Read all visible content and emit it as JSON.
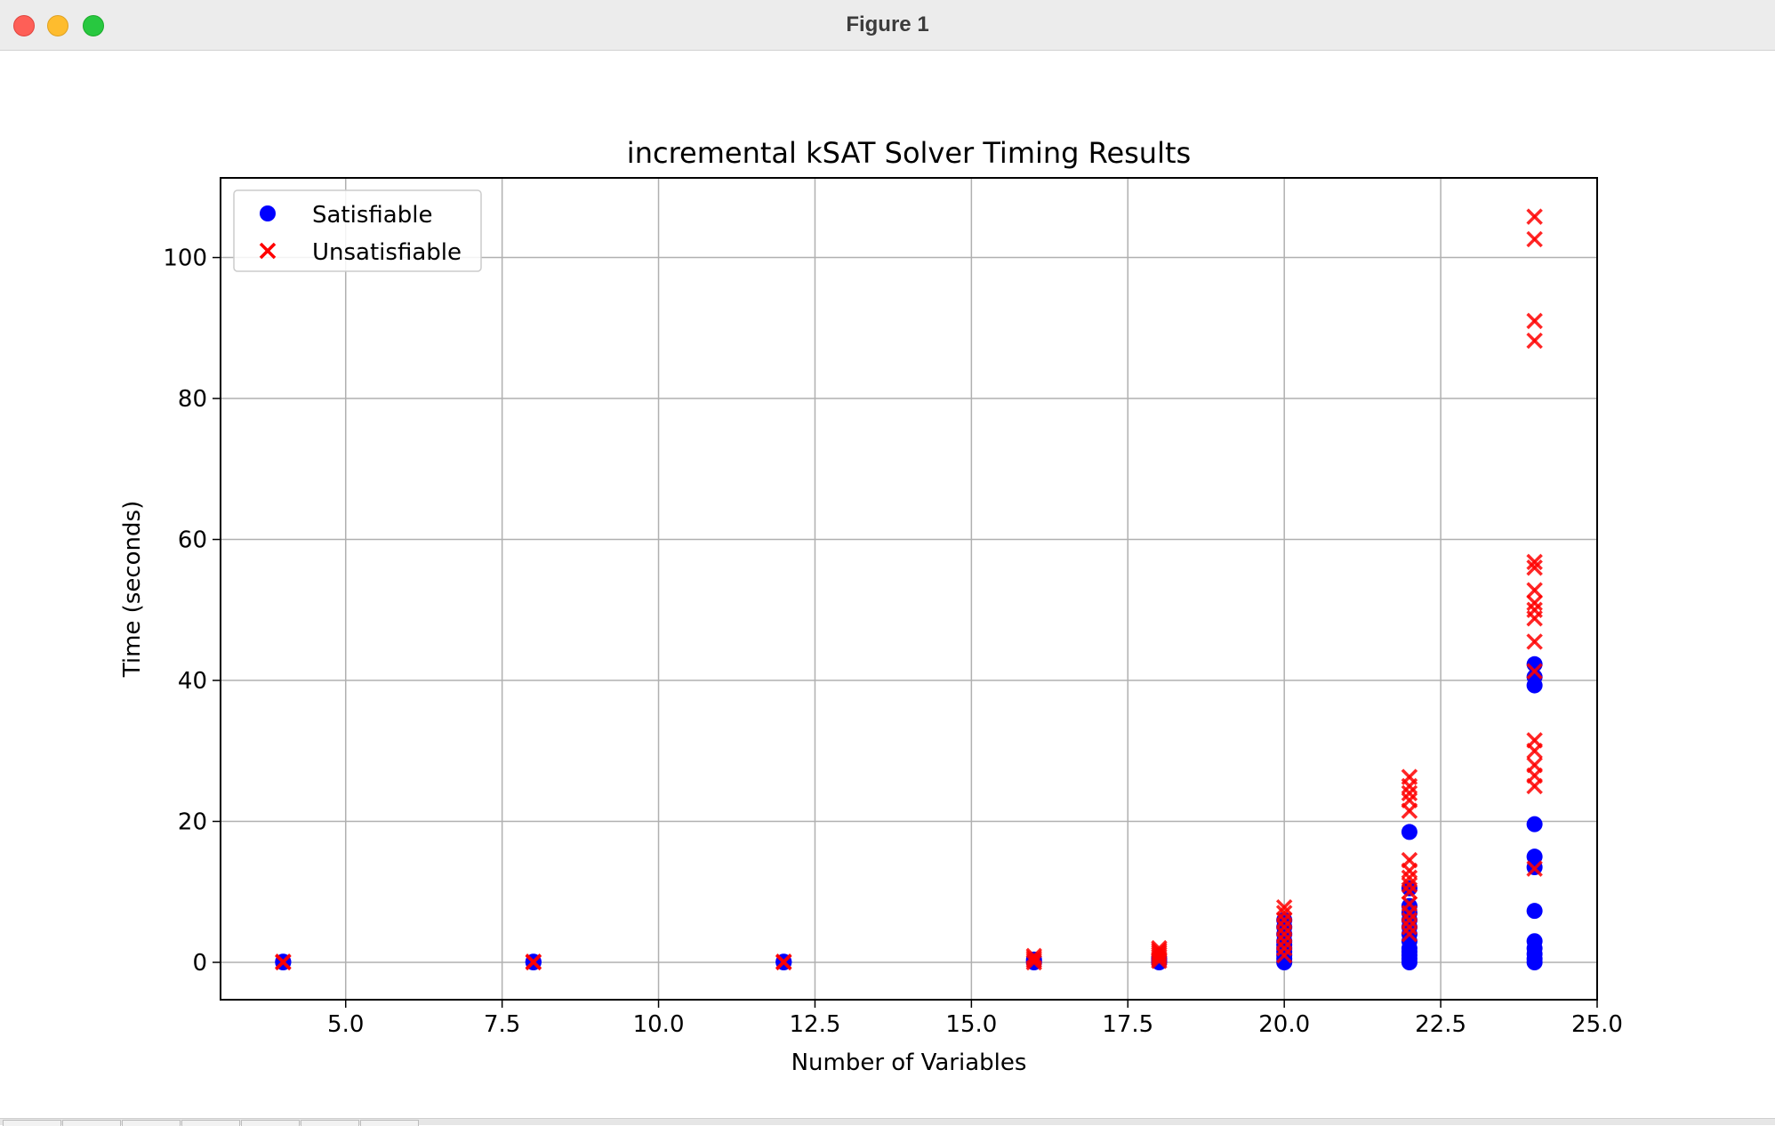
{
  "window": {
    "title": "Figure 1"
  },
  "chart_data": {
    "type": "scatter",
    "title": "incremental kSAT Solver Timing Results",
    "xlabel": "Number of Variables",
    "ylabel": "Time (seconds)",
    "xlim": [
      3.0,
      25.0
    ],
    "ylim": [
      -5.3,
      111.3
    ],
    "xticks": [
      5.0,
      7.5,
      10.0,
      12.5,
      15.0,
      17.5,
      20.0,
      22.5,
      25.0
    ],
    "xtick_labels": [
      "5.0",
      "7.5",
      "10.0",
      "12.5",
      "15.0",
      "17.5",
      "20.0",
      "22.5",
      "25.0"
    ],
    "yticks": [
      0,
      20,
      40,
      60,
      80,
      100
    ],
    "ytick_labels": [
      "0",
      "20",
      "40",
      "60",
      "80",
      "100"
    ],
    "grid": true,
    "legend_position": "top-left",
    "series": [
      {
        "name": "Satisfiable",
        "marker": "circle",
        "color": "#0000ff",
        "points": [
          [
            4,
            0
          ],
          [
            4,
            0.05
          ],
          [
            4,
            0.1
          ],
          [
            8,
            0
          ],
          [
            8,
            0.05
          ],
          [
            8,
            0.1
          ],
          [
            12,
            0
          ],
          [
            12,
            0.05
          ],
          [
            12,
            0.1
          ],
          [
            16,
            0
          ],
          [
            16,
            0.2
          ],
          [
            16,
            0.4
          ],
          [
            18,
            0
          ],
          [
            18,
            0.3
          ],
          [
            18,
            0.6
          ],
          [
            20,
            0
          ],
          [
            20,
            0.5
          ],
          [
            20,
            1
          ],
          [
            20,
            1.5
          ],
          [
            20,
            2
          ],
          [
            20,
            2.5
          ],
          [
            20,
            3
          ],
          [
            20,
            4
          ],
          [
            20,
            5
          ],
          [
            20,
            6
          ],
          [
            22,
            0
          ],
          [
            22,
            0.5
          ],
          [
            22,
            1
          ],
          [
            22,
            1.5
          ],
          [
            22,
            2
          ],
          [
            22,
            3
          ],
          [
            22,
            4
          ],
          [
            22,
            5
          ],
          [
            22,
            6
          ],
          [
            22,
            7
          ],
          [
            22,
            8
          ],
          [
            22,
            10.5
          ],
          [
            22,
            18.5
          ],
          [
            24,
            0
          ],
          [
            24,
            0.5
          ],
          [
            24,
            1.2
          ],
          [
            24,
            2
          ],
          [
            24,
            3
          ],
          [
            24,
            7.3
          ],
          [
            24,
            13.5
          ],
          [
            24,
            15
          ],
          [
            24,
            19.6
          ],
          [
            24,
            39.3
          ],
          [
            24,
            40.5
          ],
          [
            24,
            42.3
          ]
        ]
      },
      {
        "name": "Unsatisfiable",
        "marker": "x",
        "color": "#ff0000",
        "points": [
          [
            4,
            0
          ],
          [
            4,
            0.1
          ],
          [
            8,
            0
          ],
          [
            8,
            0.1
          ],
          [
            12,
            0
          ],
          [
            12,
            0.1
          ],
          [
            16,
            0
          ],
          [
            16,
            0.3
          ],
          [
            16,
            0.6
          ],
          [
            16,
            0.9
          ],
          [
            18,
            0.2
          ],
          [
            18,
            0.5
          ],
          [
            18,
            0.8
          ],
          [
            18,
            1.1
          ],
          [
            18,
            1.4
          ],
          [
            18,
            1.7
          ],
          [
            18,
            2
          ],
          [
            20,
            1
          ],
          [
            20,
            2
          ],
          [
            20,
            3
          ],
          [
            20,
            4
          ],
          [
            20,
            5
          ],
          [
            20,
            6
          ],
          [
            20,
            7
          ],
          [
            20,
            7.8
          ],
          [
            22,
            4
          ],
          [
            22,
            5
          ],
          [
            22,
            6
          ],
          [
            22,
            7
          ],
          [
            22,
            8.3
          ],
          [
            22,
            10
          ],
          [
            22,
            11
          ],
          [
            22,
            12
          ],
          [
            22,
            13
          ],
          [
            22,
            14.5
          ],
          [
            22,
            21.5
          ],
          [
            22,
            23
          ],
          [
            22,
            24
          ],
          [
            22,
            25
          ],
          [
            22,
            26.3
          ],
          [
            24,
            13.3
          ],
          [
            24,
            25
          ],
          [
            24,
            26.5
          ],
          [
            24,
            28
          ],
          [
            24,
            30
          ],
          [
            24,
            31.5
          ],
          [
            24,
            41.3
          ],
          [
            24,
            45.5
          ],
          [
            24,
            48.8
          ],
          [
            24,
            50
          ],
          [
            24,
            51
          ],
          [
            24,
            52.8
          ],
          [
            24,
            56
          ],
          [
            24,
            56.8
          ],
          [
            24,
            88.2
          ],
          [
            24,
            91
          ],
          [
            24,
            102.6
          ],
          [
            24,
            105.8
          ]
        ]
      }
    ]
  }
}
